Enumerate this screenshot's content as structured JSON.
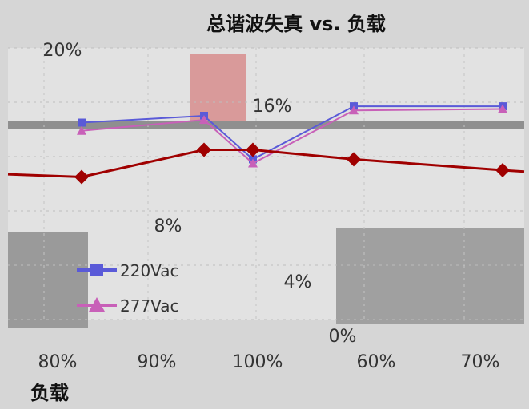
{
  "chart_data": {
    "type": "line",
    "title": "总谐波失真 vs. 负载",
    "xlabel": "负载",
    "ylabel": "",
    "categories": [
      "80%",
      "90%",
      "100%",
      "60%",
      "70%"
    ],
    "y_ticks": [
      "20%",
      "16%",
      "8%",
      "4%",
      "0%"
    ],
    "ylim": [
      0,
      20
    ],
    "grid": true,
    "legend_position": "left",
    "series": [
      {
        "name": "220Vac",
        "color": "#5a5ad8",
        "marker": "square",
        "values": [
          14.5,
          15.0,
          11.8,
          15.7,
          15.7
        ]
      },
      {
        "name": "277Vac",
        "color": "#c860b8",
        "marker": "triangle",
        "values": [
          13.9,
          14.7,
          11.5,
          15.4,
          15.5
        ]
      }
    ],
    "highlight_series": {
      "color": "#a00000",
      "values": [
        10.5,
        12.5,
        12.5,
        11.8,
        11.0
      ]
    }
  }
}
